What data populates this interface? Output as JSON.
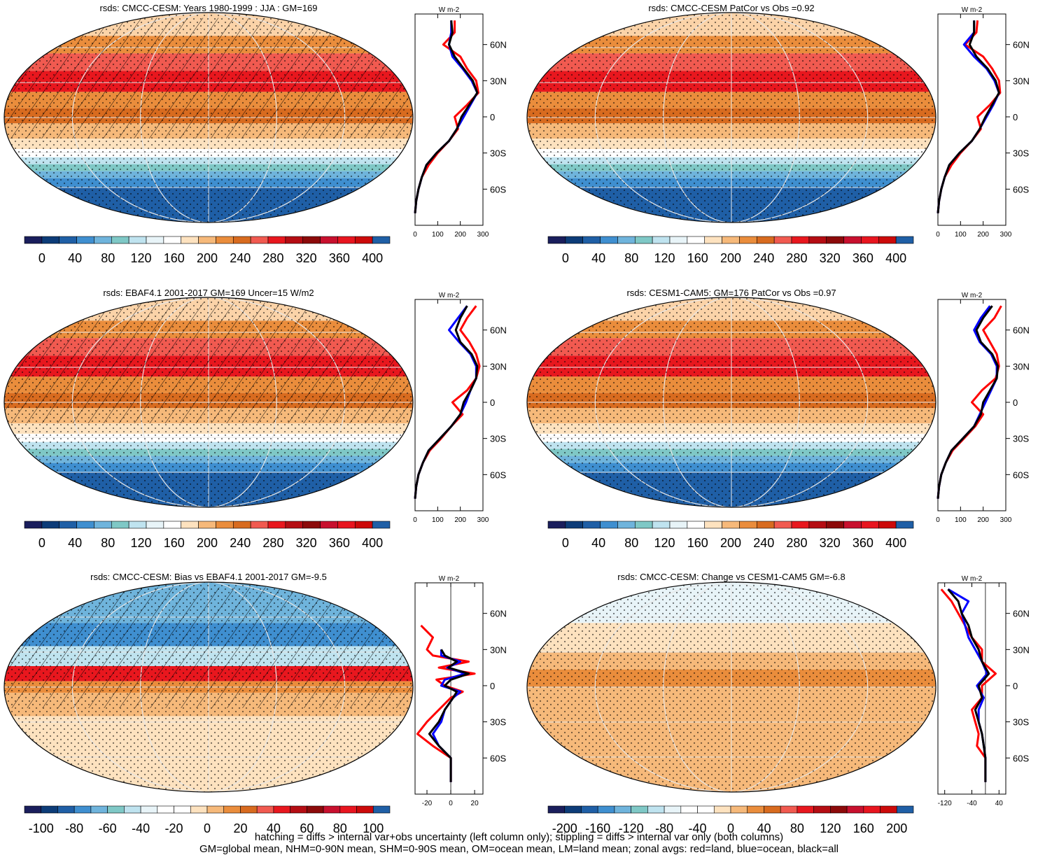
{
  "captions": {
    "line1": "hatching = diffs > internal var+obs uncertainty (left column only); stippling = diffs > internal var only (both columns)",
    "line2": "GM=global mean, NHM=0-90N mean, SHM=0-90S mean, OM=ocean mean, LM=land mean; zonal avgs: red=land, blue=ocean, black=all"
  },
  "colors": {
    "land": "#ff0000",
    "ocean": "#0000ff",
    "all": "#000000",
    "abs_scale": [
      "#1a1e5c",
      "#0d3c78",
      "#1f5fa6",
      "#3f8fd0",
      "#6fb4dc",
      "#7fc8c6",
      "#bfe3ef",
      "#e8f4f8",
      "#ffffff",
      "#fde2bf",
      "#f6b97a",
      "#ea8d3c",
      "#d86b1f",
      "#f15a50",
      "#e8171e",
      "#b50d13",
      "#8c0a0a",
      "#c8102e",
      "#e8151f",
      "#cc0a0a",
      "#1f5fa6"
    ],
    "diff_scale": [
      "#1a1e5c",
      "#0d3c78",
      "#1f5fa6",
      "#3f8fd0",
      "#6fb4dc",
      "#7fc8c6",
      "#bfe3ef",
      "#e8f4f8",
      "#ffffff",
      "#ffffff",
      "#fde2bf",
      "#f6b97a",
      "#ea8d3c",
      "#d86b1f",
      "#f15a50",
      "#e8171e",
      "#b50d13",
      "#8c0a0a",
      "#c8102e",
      "#e8151f",
      "#cc0a0a",
      "#1f5fa6"
    ]
  },
  "units": "W m-2",
  "lat_ticks": [
    "60N",
    "30N",
    "0",
    "30S",
    "60S"
  ],
  "chart_data": [
    {
      "type": "heatmap",
      "id": "p1",
      "title": "rsds: CMCC-CESM: Years 1980-1999 : JJA : GM=169",
      "hatched": true,
      "scale": "abs",
      "colorbar_labels": [
        "0",
        "40",
        "80",
        "120",
        "160",
        "200",
        "240",
        "280",
        "320",
        "360",
        "400"
      ],
      "profile": {
        "xticks": [
          "0",
          "100",
          "200",
          "300"
        ],
        "xlim": [
          0,
          300
        ],
        "lat": [
          80,
          70,
          60,
          50,
          40,
          30,
          20,
          10,
          0,
          -10,
          -20,
          -30,
          -40,
          -50,
          -60,
          -70,
          -80
        ],
        "all": [
          160,
          165,
          150,
          175,
          215,
          255,
          275,
          240,
          205,
          185,
          150,
          95,
          50,
          30,
          15,
          5,
          0
        ],
        "land": [
          175,
          175,
          125,
          200,
          230,
          270,
          280,
          230,
          175,
          190,
          150,
          100,
          60,
          30,
          15,
          5,
          0
        ],
        "ocean": [
          160,
          160,
          150,
          165,
          210,
          250,
          275,
          245,
          215,
          185,
          150,
          95,
          50,
          30,
          15,
          5,
          0
        ]
      }
    },
    {
      "type": "heatmap",
      "id": "p2",
      "title": "rsds: CMCC-CESM PatCor vs Obs =0.92",
      "hatched": false,
      "scale": "abs",
      "colorbar_labels": [
        "0",
        "40",
        "80",
        "120",
        "160",
        "200",
        "240",
        "280",
        "320",
        "360",
        "400"
      ],
      "profile": {
        "xticks": [
          "0",
          "100",
          "200",
          "300"
        ],
        "xlim": [
          0,
          300
        ],
        "lat": [
          80,
          70,
          60,
          50,
          40,
          30,
          20,
          10,
          0,
          -10,
          -20,
          -30,
          -40,
          -50,
          -60,
          -70,
          -80
        ],
        "all": [
          160,
          160,
          140,
          170,
          220,
          255,
          270,
          240,
          210,
          185,
          150,
          95,
          50,
          30,
          15,
          5,
          0
        ],
        "land": [
          175,
          170,
          120,
          200,
          240,
          270,
          275,
          230,
          175,
          190,
          150,
          100,
          60,
          30,
          15,
          5,
          0
        ],
        "ocean": [
          160,
          160,
          115,
          160,
          215,
          250,
          270,
          245,
          215,
          185,
          150,
          95,
          50,
          30,
          15,
          5,
          0
        ]
      }
    },
    {
      "type": "heatmap",
      "id": "p3",
      "title": "rsds: EBAF4.1 2001-2017 GM=169 Uncer=15 W/m2",
      "hatched": true,
      "scale": "abs",
      "colorbar_labels": [
        "0",
        "40",
        "80",
        "120",
        "160",
        "200",
        "240",
        "280",
        "320",
        "360",
        "400"
      ],
      "profile": {
        "xticks": [
          "0",
          "100",
          "200",
          "300"
        ],
        "xlim": [
          0,
          300
        ],
        "lat": [
          80,
          70,
          60,
          50,
          40,
          30,
          20,
          10,
          0,
          -10,
          -20,
          -30,
          -40,
          -50,
          -60,
          -70,
          -80
        ],
        "all": [
          230,
          200,
          180,
          200,
          250,
          275,
          270,
          245,
          215,
          200,
          160,
          110,
          60,
          35,
          15,
          5,
          0
        ],
        "land": [
          270,
          230,
          200,
          240,
          270,
          285,
          270,
          230,
          165,
          210,
          160,
          115,
          65,
          35,
          15,
          5,
          0
        ],
        "ocean": [
          230,
          190,
          150,
          195,
          245,
          270,
          270,
          245,
          225,
          200,
          160,
          110,
          60,
          35,
          15,
          5,
          0
        ]
      }
    },
    {
      "type": "heatmap",
      "id": "p4",
      "title": "rsds: CESM1-CAM5: GM=176 PatCor vs Obs =0.97",
      "hatched": false,
      "scale": "abs",
      "colorbar_labels": [
        "0",
        "40",
        "80",
        "120",
        "160",
        "200",
        "240",
        "280",
        "320",
        "360",
        "400"
      ],
      "profile": {
        "xticks": [
          "0",
          "100",
          "200",
          "300"
        ],
        "xlim": [
          0,
          300
        ],
        "lat": [
          80,
          70,
          60,
          50,
          40,
          30,
          20,
          10,
          0,
          -10,
          -20,
          -30,
          -40,
          -50,
          -60,
          -70,
          -80
        ],
        "all": [
          240,
          200,
          170,
          190,
          240,
          265,
          260,
          230,
          200,
          190,
          160,
          110,
          60,
          35,
          15,
          5,
          0
        ],
        "land": [
          280,
          250,
          200,
          230,
          260,
          270,
          255,
          195,
          150,
          200,
          165,
          115,
          65,
          35,
          15,
          5,
          0
        ],
        "ocean": [
          230,
          190,
          160,
          185,
          235,
          260,
          260,
          235,
          210,
          185,
          160,
          110,
          60,
          35,
          15,
          5,
          0
        ]
      }
    },
    {
      "type": "heatmap",
      "id": "p5",
      "title": "rsds: CMCC-CESM: Bias vs EBAF4.1 2001-2017 GM=-9.5",
      "hatched": true,
      "scale": "diff",
      "colorbar_labels": [
        "-100",
        "-80",
        "-60",
        "-40",
        "-20",
        "0",
        "20",
        "40",
        "60",
        "80",
        "100"
      ],
      "profile": {
        "xticks": [
          "-20",
          "0",
          "20"
        ],
        "xlim": [
          -30,
          27
        ],
        "zero_line": true,
        "lat": [
          70,
          60,
          50,
          40,
          30,
          25,
          20,
          15,
          10,
          5,
          0,
          -5,
          -10,
          -20,
          -30,
          -40,
          -50,
          -60,
          -70,
          -80
        ],
        "all": [
          null,
          null,
          null,
          null,
          -8,
          -5,
          5,
          -2,
          15,
          0,
          -5,
          5,
          2,
          -5,
          -10,
          -18,
          -10,
          0,
          0,
          0
        ],
        "land": [
          null,
          null,
          -25,
          -15,
          -20,
          -15,
          15,
          -10,
          20,
          -12,
          -5,
          10,
          0,
          -10,
          -20,
          -28,
          -15,
          0,
          0,
          0
        ],
        "ocean": [
          -5,
          null,
          null,
          null,
          -8,
          -8,
          8,
          -3,
          12,
          -5,
          -8,
          8,
          2,
          -5,
          -8,
          -15,
          -10,
          0,
          0,
          0
        ]
      }
    },
    {
      "type": "heatmap",
      "id": "p6",
      "title": "rsds: CMCC-CESM: Change vs CESM1-CAM5 GM=-6.8",
      "hatched": false,
      "scale": "diff",
      "colorbar_labels": [
        "-200",
        "-160",
        "-120",
        "-80",
        "-40",
        "0",
        "40",
        "80",
        "120",
        "160",
        "200"
      ],
      "profile": {
        "xticks": [
          "-120",
          "-40",
          "40"
        ],
        "xlim": [
          -140,
          60
        ],
        "zero_line": true,
        "lat": [
          80,
          70,
          60,
          50,
          40,
          30,
          20,
          10,
          0,
          -10,
          -20,
          -30,
          -40,
          -50,
          -60,
          -70,
          -80
        ],
        "all": [
          -110,
          -80,
          -70,
          -50,
          -40,
          -20,
          -10,
          10,
          -20,
          -10,
          -30,
          -20,
          -10,
          -5,
          0,
          0,
          0
        ],
        "land": [
          -130,
          -100,
          -80,
          -60,
          -40,
          -10,
          -10,
          30,
          -10,
          -10,
          -40,
          -30,
          -20,
          -25,
          0,
          0,
          0
        ],
        "ocean": [
          -110,
          -50,
          -70,
          -60,
          -50,
          -30,
          -10,
          5,
          -25,
          -5,
          -20,
          -20,
          -10,
          -5,
          0,
          0,
          0
        ]
      }
    }
  ]
}
